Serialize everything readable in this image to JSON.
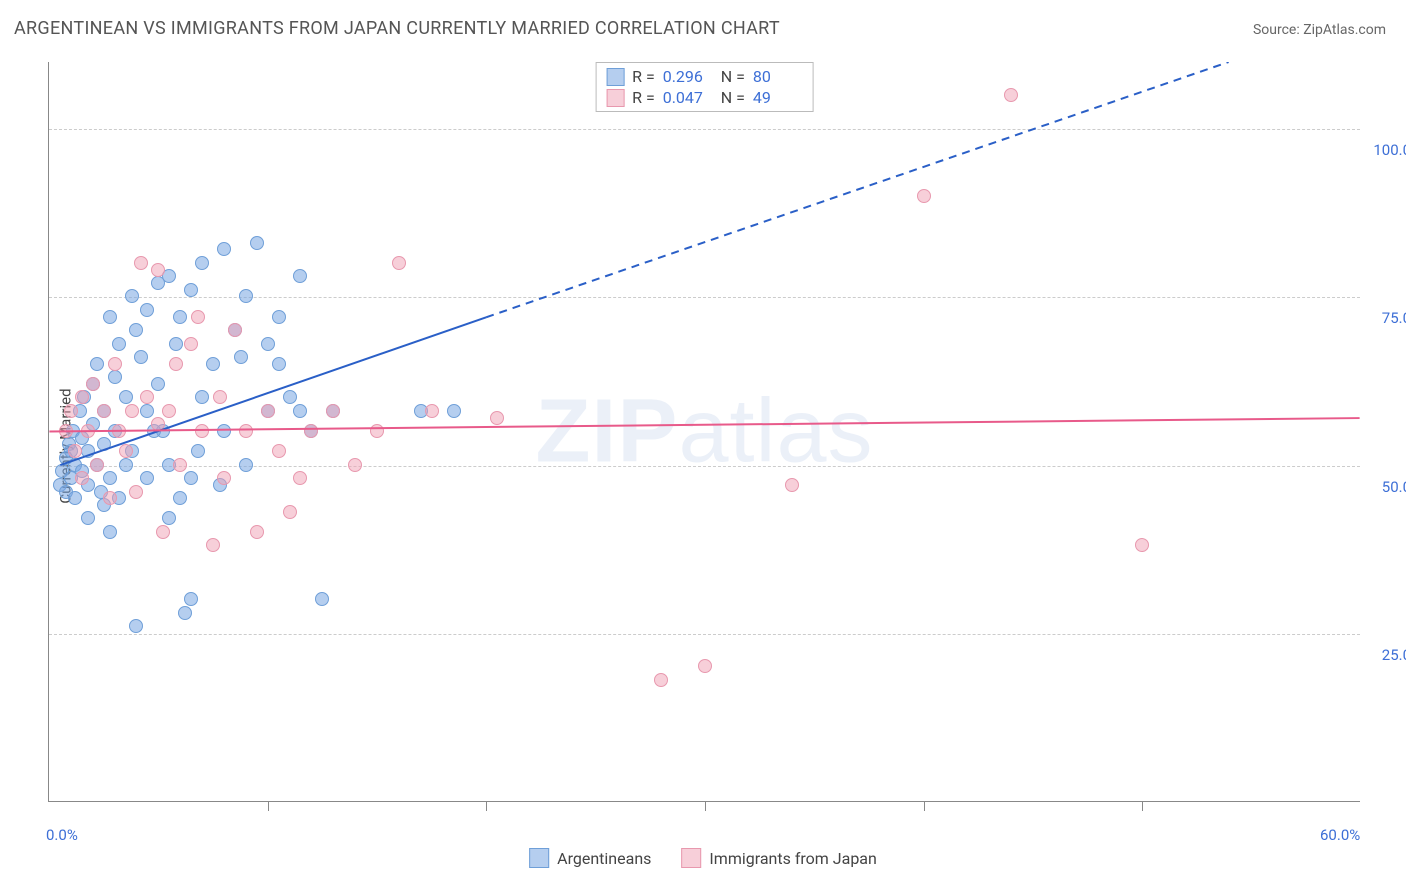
{
  "title": "ARGENTINEAN VS IMMIGRANTS FROM JAPAN CURRENTLY MARRIED CORRELATION CHART",
  "source": "Source: ZipAtlas.com",
  "ylabel": "Currently Married",
  "watermark_a": "ZIP",
  "watermark_b": "atlas",
  "chart": {
    "type": "scatter",
    "xlim": [
      0,
      60
    ],
    "ylim": [
      0,
      110
    ],
    "x_ticks": [
      0,
      60
    ],
    "x_tick_labels": [
      "0.0%",
      "60.0%"
    ],
    "x_minor_ticks": [
      10,
      20,
      30,
      40,
      50
    ],
    "y_grid": [
      25,
      50,
      75,
      100
    ],
    "y_grid_labels": [
      "25.0%",
      "50.0%",
      "75.0%",
      "100.0%"
    ],
    "background_color": "#ffffff",
    "grid_color": "#cccccc",
    "axis_color": "#888888",
    "tick_label_color": "#3d6fd6",
    "point_radius": 7,
    "series": [
      {
        "name": "Argentineans",
        "fill": "rgba(120,165,225,0.55)",
        "stroke": "#6f9fd8",
        "R": "0.296",
        "N": "80",
        "trend": {
          "x1": 0.5,
          "y1": 50,
          "x2_solid": 20,
          "y2_solid": 72,
          "x2_dash": 54,
          "y2_dash": 110,
          "color": "#2a5fc7",
          "width": 2
        },
        "points": [
          [
            0.5,
            47
          ],
          [
            0.6,
            49
          ],
          [
            0.8,
            51
          ],
          [
            0.8,
            46
          ],
          [
            0.9,
            53
          ],
          [
            1.0,
            48
          ],
          [
            1.0,
            52
          ],
          [
            1.1,
            55
          ],
          [
            1.2,
            50
          ],
          [
            1.2,
            45
          ],
          [
            1.4,
            58
          ],
          [
            1.5,
            49
          ],
          [
            1.5,
            54
          ],
          [
            1.6,
            60
          ],
          [
            1.8,
            47
          ],
          [
            1.8,
            52
          ],
          [
            2.0,
            62
          ],
          [
            2.0,
            56
          ],
          [
            2.2,
            50
          ],
          [
            2.2,
            65
          ],
          [
            2.4,
            46
          ],
          [
            2.5,
            58
          ],
          [
            2.5,
            53
          ],
          [
            2.8,
            72
          ],
          [
            2.8,
            48
          ],
          [
            3.0,
            63
          ],
          [
            3.0,
            55
          ],
          [
            3.2,
            68
          ],
          [
            3.5,
            50
          ],
          [
            3.5,
            60
          ],
          [
            3.8,
            75
          ],
          [
            4.0,
            26
          ],
          [
            4.0,
            70
          ],
          [
            4.2,
            66
          ],
          [
            4.5,
            58
          ],
          [
            4.5,
            73
          ],
          [
            5.0,
            77
          ],
          [
            5.0,
            62
          ],
          [
            5.2,
            55
          ],
          [
            5.5,
            78
          ],
          [
            5.8,
            68
          ],
          [
            6.0,
            45
          ],
          [
            6.0,
            72
          ],
          [
            6.5,
            30
          ],
          [
            6.5,
            76
          ],
          [
            7.0,
            80
          ],
          [
            7.0,
            60
          ],
          [
            7.5,
            65
          ],
          [
            8.0,
            82
          ],
          [
            8.0,
            55
          ],
          [
            8.5,
            70
          ],
          [
            9.0,
            75
          ],
          [
            9.0,
            50
          ],
          [
            9.5,
            83
          ],
          [
            10.0,
            68
          ],
          [
            10.0,
            58
          ],
          [
            10.5,
            72
          ],
          [
            11.0,
            60
          ],
          [
            11.5,
            78
          ],
          [
            12.0,
            55
          ],
          [
            12.5,
            30
          ],
          [
            6.2,
            28
          ],
          [
            3.2,
            45
          ],
          [
            2.8,
            40
          ],
          [
            1.8,
            42
          ],
          [
            4.5,
            48
          ],
          [
            5.5,
            50
          ],
          [
            6.8,
            52
          ],
          [
            7.8,
            47
          ],
          [
            8.8,
            66
          ],
          [
            10.5,
            65
          ],
          [
            11.5,
            58
          ],
          [
            4.8,
            55
          ],
          [
            5.5,
            42
          ],
          [
            6.5,
            48
          ],
          [
            3.8,
            52
          ],
          [
            2.5,
            44
          ],
          [
            17.0,
            58
          ],
          [
            18.5,
            58
          ],
          [
            13.0,
            58
          ]
        ]
      },
      {
        "name": "Immigrants from Japan",
        "fill": "rgba(240,160,180,0.5)",
        "stroke": "#e898ae",
        "R": "0.047",
        "N": "49",
        "trend": {
          "x1": 0,
          "y1": 55,
          "x2_solid": 60,
          "y2_solid": 57,
          "x2_dash": 60,
          "y2_dash": 57,
          "color": "#e85a8a",
          "width": 2
        },
        "points": [
          [
            0.8,
            55
          ],
          [
            1.0,
            58
          ],
          [
            1.2,
            52
          ],
          [
            1.5,
            60
          ],
          [
            1.5,
            48
          ],
          [
            1.8,
            55
          ],
          [
            2.0,
            62
          ],
          [
            2.2,
            50
          ],
          [
            2.5,
            58
          ],
          [
            2.8,
            45
          ],
          [
            3.0,
            65
          ],
          [
            3.2,
            55
          ],
          [
            3.5,
            52
          ],
          [
            3.8,
            58
          ],
          [
            4.0,
            46
          ],
          [
            4.5,
            60
          ],
          [
            5.0,
            56
          ],
          [
            5.2,
            40
          ],
          [
            5.5,
            58
          ],
          [
            6.0,
            50
          ],
          [
            6.5,
            68
          ],
          [
            7.0,
            55
          ],
          [
            7.5,
            38
          ],
          [
            8.0,
            48
          ],
          [
            8.5,
            70
          ],
          [
            9.0,
            55
          ],
          [
            9.5,
            40
          ],
          [
            10.0,
            58
          ],
          [
            28.0,
            18
          ],
          [
            30.0,
            20
          ],
          [
            34.0,
            47
          ],
          [
            40.0,
            90
          ],
          [
            44.0,
            105
          ],
          [
            50.0,
            38
          ],
          [
            11.0,
            43
          ],
          [
            12.0,
            55
          ],
          [
            13.0,
            58
          ],
          [
            14.0,
            50
          ],
          [
            4.2,
            80
          ],
          [
            5.8,
            65
          ],
          [
            6.8,
            72
          ],
          [
            7.8,
            60
          ],
          [
            10.5,
            52
          ],
          [
            11.5,
            48
          ],
          [
            5.0,
            79
          ],
          [
            16.0,
            80
          ],
          [
            15.0,
            55
          ],
          [
            17.5,
            58
          ],
          [
            20.5,
            57
          ]
        ]
      }
    ]
  },
  "legend": {
    "item1_label": "Argentineans",
    "item2_label": "Immigrants from Japan"
  },
  "stats_labels": {
    "R": "R  =",
    "N": "N  ="
  }
}
